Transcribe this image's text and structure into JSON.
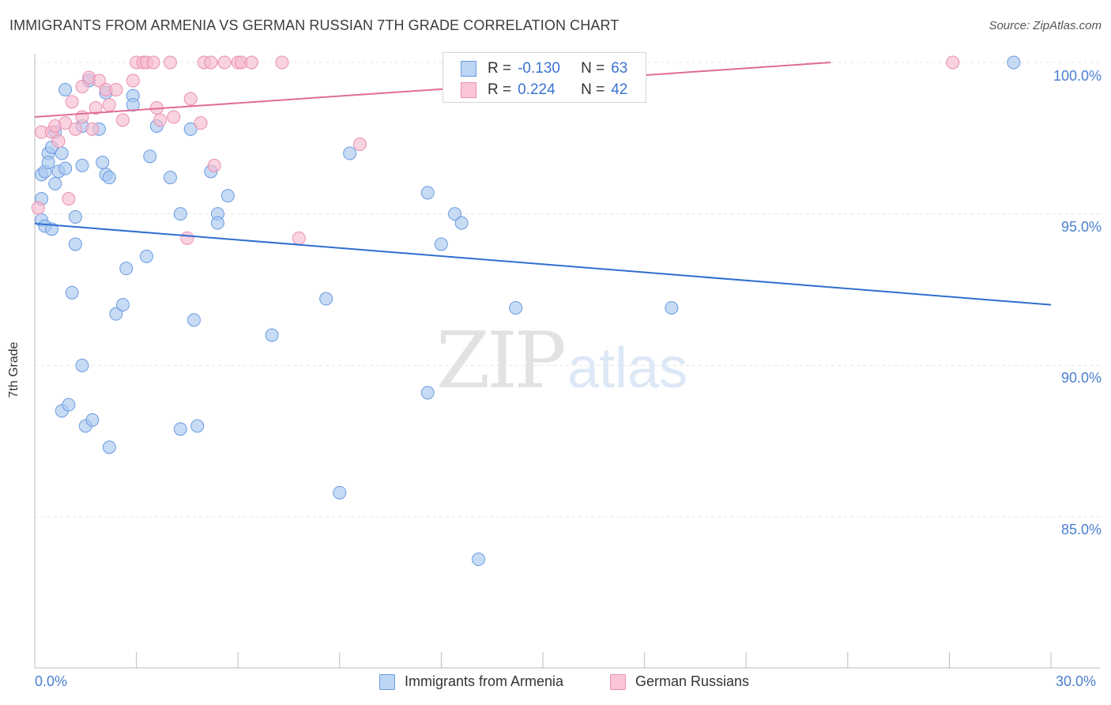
{
  "title": "IMMIGRANTS FROM ARMENIA VS GERMAN RUSSIAN 7TH GRADE CORRELATION CHART",
  "source": "Source: ZipAtlas.com",
  "watermark": {
    "zip": "ZIP",
    "atlas": "atlas"
  },
  "legend_top": {
    "rows": [
      {
        "r_label": "R =",
        "r_value": "-0.130",
        "n_label": "N =",
        "n_value": "63"
      },
      {
        "r_label": "R =",
        "r_value": "0.224",
        "n_label": "N =",
        "n_value": "42"
      }
    ]
  },
  "colors": {
    "blue_fill": "#a9c8f0",
    "blue_stroke": "#6a9be0",
    "blue_line": "#2f6fcf",
    "pink_fill": "#f7bcd0",
    "pink_stroke": "#e98fb0",
    "pink_line": "#e06c94",
    "tick_text": "#4a7fd0",
    "grid": "#e4e4e4"
  },
  "chart_data": {
    "type": "scatter",
    "title": "IMMIGRANTS FROM ARMENIA VS GERMAN RUSSIAN 7TH GRADE CORRELATION CHART",
    "xlabel": "",
    "ylabel": "7th Grade",
    "xlim": [
      0,
      30
    ],
    "ylim": [
      80.4,
      100.7
    ],
    "x_tick_labels": [
      {
        "value": 0,
        "label": "0.0%"
      },
      {
        "value": 30,
        "label": "30.0%"
      }
    ],
    "y_tick_labels": [
      {
        "value": 100,
        "label": "100.0%"
      },
      {
        "value": 95,
        "label": "95.0%"
      },
      {
        "value": 90,
        "label": "90.0%"
      },
      {
        "value": 85,
        "label": "85.0%"
      }
    ],
    "grid": true,
    "legend_position": "bottom-center",
    "series": [
      {
        "name": "Immigrants from Armenia",
        "color": "blue",
        "R": -0.13,
        "N": 63,
        "trend": {
          "x": [
            0,
            30
          ],
          "y": [
            94.68,
            92.0
          ]
        },
        "points": [
          [
            0.2,
            95.5
          ],
          [
            0.2,
            94.8
          ],
          [
            0.2,
            96.3
          ],
          [
            0.3,
            94.6
          ],
          [
            0.3,
            96.4
          ],
          [
            0.4,
            97.0
          ],
          [
            0.4,
            96.7
          ],
          [
            0.5,
            94.5
          ],
          [
            0.5,
            97.2
          ],
          [
            0.6,
            97.7
          ],
          [
            0.6,
            96.0
          ],
          [
            0.7,
            96.4
          ],
          [
            0.8,
            97.0
          ],
          [
            0.9,
            96.5
          ],
          [
            0.9,
            99.1
          ],
          [
            1.2,
            94.9
          ],
          [
            1.2,
            94.0
          ],
          [
            1.1,
            92.4
          ],
          [
            0.8,
            88.5
          ],
          [
            1.0,
            88.7
          ],
          [
            1.4,
            90.0
          ],
          [
            1.5,
            88.0
          ],
          [
            1.7,
            88.2
          ],
          [
            1.4,
            96.6
          ],
          [
            1.4,
            97.9
          ],
          [
            1.6,
            99.4
          ],
          [
            1.9,
            97.8
          ],
          [
            2.0,
            96.7
          ],
          [
            2.1,
            99.0
          ],
          [
            2.1,
            96.3
          ],
          [
            2.2,
            96.2
          ],
          [
            2.2,
            87.3
          ],
          [
            2.4,
            91.7
          ],
          [
            2.6,
            92.0
          ],
          [
            2.7,
            93.2
          ],
          [
            2.9,
            98.9
          ],
          [
            2.9,
            98.6
          ],
          [
            3.3,
            93.6
          ],
          [
            3.4,
            96.9
          ],
          [
            3.6,
            97.9
          ],
          [
            4.0,
            96.2
          ],
          [
            4.3,
            95.0
          ],
          [
            4.3,
            87.9
          ],
          [
            4.6,
            97.8
          ],
          [
            4.7,
            91.5
          ],
          [
            4.8,
            88.0
          ],
          [
            5.2,
            96.4
          ],
          [
            5.4,
            95.0
          ],
          [
            5.4,
            94.7
          ],
          [
            5.7,
            95.6
          ],
          [
            7.0,
            91.0
          ],
          [
            8.6,
            92.2
          ],
          [
            9.0,
            85.8
          ],
          [
            9.3,
            97.0
          ],
          [
            11.6,
            89.1
          ],
          [
            11.6,
            95.7
          ],
          [
            12.0,
            94.0
          ],
          [
            12.4,
            95.0
          ],
          [
            12.6,
            94.7
          ],
          [
            13.1,
            83.6
          ],
          [
            14.2,
            91.9
          ],
          [
            18.8,
            91.9
          ],
          [
            28.9,
            100.0
          ]
        ]
      },
      {
        "name": "German Russians",
        "color": "pink",
        "R": 0.224,
        "N": 42,
        "trend": {
          "x": [
            0,
            23.5
          ],
          "y": [
            98.2,
            100.0
          ]
        },
        "points": [
          [
            0.1,
            95.2
          ],
          [
            0.2,
            97.7
          ],
          [
            0.5,
            97.7
          ],
          [
            0.6,
            97.9
          ],
          [
            0.7,
            97.4
          ],
          [
            0.9,
            98.0
          ],
          [
            1.0,
            95.5
          ],
          [
            1.1,
            98.7
          ],
          [
            1.2,
            97.8
          ],
          [
            1.4,
            98.2
          ],
          [
            1.4,
            99.2
          ],
          [
            1.6,
            99.5
          ],
          [
            1.7,
            97.8
          ],
          [
            1.8,
            98.5
          ],
          [
            1.9,
            99.4
          ],
          [
            2.1,
            99.1
          ],
          [
            2.2,
            98.6
          ],
          [
            2.4,
            99.1
          ],
          [
            2.6,
            98.1
          ],
          [
            2.9,
            99.4
          ],
          [
            3.0,
            100.0
          ],
          [
            3.2,
            100.0
          ],
          [
            3.3,
            100.0
          ],
          [
            3.5,
            100.0
          ],
          [
            3.6,
            98.5
          ],
          [
            3.7,
            98.1
          ],
          [
            4.0,
            100.0
          ],
          [
            4.1,
            98.2
          ],
          [
            4.5,
            94.2
          ],
          [
            4.6,
            98.8
          ],
          [
            4.9,
            98.0
          ],
          [
            5.0,
            100.0
          ],
          [
            5.2,
            100.0
          ],
          [
            5.3,
            96.6
          ],
          [
            5.6,
            100.0
          ],
          [
            6.0,
            100.0
          ],
          [
            6.1,
            100.0
          ],
          [
            6.4,
            100.0
          ],
          [
            7.3,
            100.0
          ],
          [
            7.8,
            94.2
          ],
          [
            9.6,
            97.3
          ],
          [
            27.1,
            100.0
          ]
        ]
      }
    ]
  }
}
